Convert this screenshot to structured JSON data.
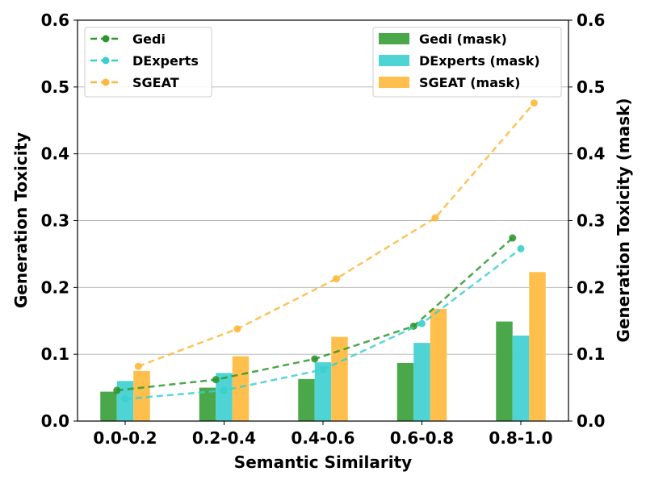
{
  "chart_data": {
    "type": "bar+line",
    "xlabel": "Semantic Similarity",
    "ylabel_left": "Generation Toxicity",
    "ylabel_right": "Generation Toxicity (mask)",
    "categories": [
      "0.0-0.2",
      "0.2-0.4",
      "0.4-0.6",
      "0.6-0.8",
      "0.8-1.0"
    ],
    "ylim": [
      0,
      0.6
    ],
    "yticks": [
      "0.0",
      "0.1",
      "0.2",
      "0.3",
      "0.4",
      "0.5",
      "0.6"
    ],
    "ytick_values": [
      0,
      0.1,
      0.2,
      0.3,
      0.4,
      0.5,
      0.6
    ],
    "grid": "horizontal",
    "line_legend_position": "upper-left",
    "bar_legend_position": "upper-right",
    "line_series": [
      {
        "name": "Gedi",
        "color": "#2e962e",
        "values": [
          0.046,
          0.062,
          0.093,
          0.142,
          0.274
        ]
      },
      {
        "name": "DExperts",
        "color": "#3ccfcf",
        "values": [
          0.033,
          0.046,
          0.077,
          0.146,
          0.258
        ]
      },
      {
        "name": "SGEAT",
        "color": "#fdb83c",
        "values": [
          0.082,
          0.138,
          0.213,
          0.304,
          0.476
        ]
      }
    ],
    "bar_series": [
      {
        "name": "Gedi (mask)",
        "color": "#4aa84a",
        "values": [
          0.044,
          0.05,
          0.063,
          0.087,
          0.149
        ]
      },
      {
        "name": "DExperts (mask)",
        "color": "#4ed4d4",
        "values": [
          0.06,
          0.072,
          0.088,
          0.117,
          0.128
        ]
      },
      {
        "name": "SGEAT (mask)",
        "color": "#ffbf4d",
        "values": [
          0.075,
          0.097,
          0.126,
          0.168,
          0.223
        ]
      }
    ]
  }
}
